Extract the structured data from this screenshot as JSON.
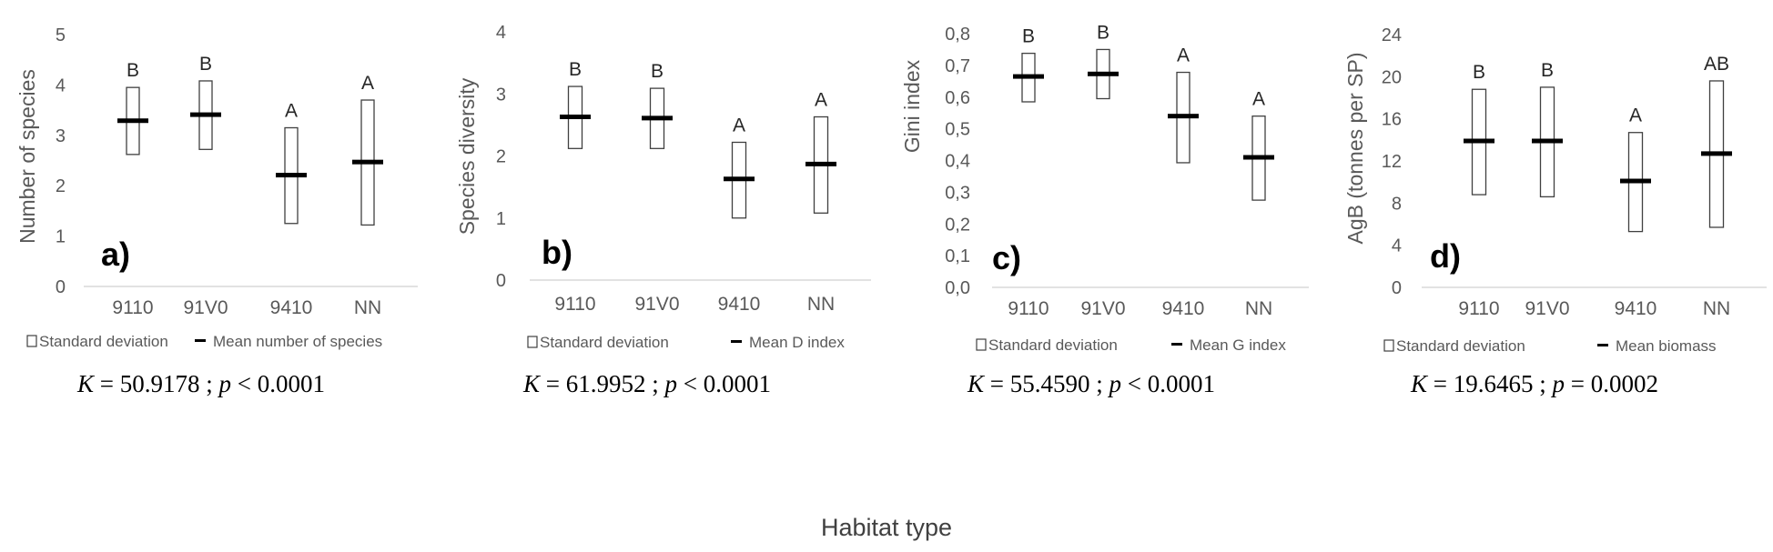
{
  "colors": {
    "axis_text": "#595959",
    "box_stroke": "#404040",
    "mean_bar": "#000000",
    "axis_line": "#d9d9d9",
    "letter": "#262626"
  },
  "x_axis_title": "Habitat type",
  "chart_data": [
    {
      "type": "box",
      "panel_label": "a)",
      "categories": [
        "9110",
        "91V0",
        "9410",
        "NN"
      ],
      "ylabel": "Number of species",
      "ylim": [
        0,
        5
      ],
      "yticks": [
        0,
        1,
        2,
        3,
        4,
        5
      ],
      "ytick_labels": [
        "0",
        "1",
        "2",
        "3",
        "4",
        "5"
      ],
      "series": [
        {
          "name": "Standard deviation",
          "lower": [
            2.62,
            2.72,
            1.25,
            1.22
          ],
          "upper": [
            3.95,
            4.08,
            3.15,
            3.7
          ]
        },
        {
          "name": "Mean number of species",
          "values": [
            3.29,
            3.41,
            2.21,
            2.47
          ]
        }
      ],
      "group_letters": [
        "B",
        "B",
        "A",
        "A"
      ],
      "legend": [
        "Standard deviation",
        "Mean number of species"
      ],
      "stats": {
        "k_label": "K",
        "k_value": "= 50.9178 ;",
        "p_label": "p",
        "p_value": "< 0.0001"
      }
    },
    {
      "type": "box",
      "panel_label": "b)",
      "categories": [
        "9110",
        "91V0",
        "9410",
        "NN"
      ],
      "ylabel": "Species diversity",
      "ylim": [
        0,
        4
      ],
      "yticks": [
        0,
        1,
        2,
        3,
        4
      ],
      "ytick_labels": [
        "0",
        "1",
        "2",
        "3",
        "4"
      ],
      "series": [
        {
          "name": "Standard deviation",
          "lower": [
            2.12,
            2.12,
            1.0,
            1.08
          ],
          "upper": [
            3.12,
            3.09,
            2.22,
            2.63
          ]
        },
        {
          "name": "Mean D index",
          "values": [
            2.63,
            2.61,
            1.63,
            1.87
          ]
        }
      ],
      "group_letters": [
        "B",
        "B",
        "A",
        "A"
      ],
      "legend": [
        "Standard deviation",
        "Mean D index"
      ],
      "stats": {
        "k_label": "K",
        "k_value": "= 61.9952 ;",
        "p_label": "p",
        "p_value": "< 0.0001"
      }
    },
    {
      "type": "box",
      "panel_label": "c)",
      "categories": [
        "9110",
        "91V0",
        "9410",
        "NN"
      ],
      "ylabel": "Gini index",
      "ylim": [
        0,
        0.8
      ],
      "yticks": [
        0,
        0.1,
        0.2,
        0.3,
        0.4,
        0.5,
        0.6,
        0.7,
        0.8
      ],
      "ytick_labels": [
        "0,0",
        "0,1",
        "0,2",
        "0,3",
        "0,4",
        "0,5",
        "0,6",
        "0,7",
        "0,8"
      ],
      "series": [
        {
          "name": "Standard deviation",
          "lower": [
            0.585,
            0.595,
            0.393,
            0.275
          ],
          "upper": [
            0.738,
            0.75,
            0.678,
            0.54
          ]
        },
        {
          "name": "Mean G index",
          "values": [
            0.665,
            0.673,
            0.54,
            0.41
          ]
        }
      ],
      "group_letters": [
        "B",
        "B",
        "A",
        "A"
      ],
      "legend": [
        "Standard deviation",
        "Mean G index"
      ],
      "stats": {
        "k_label": "K",
        "k_value": "= 55.4590 ;",
        "p_label": "p",
        "p_value": "< 0.0001"
      }
    },
    {
      "type": "box",
      "panel_label": "d)",
      "categories": [
        "9110",
        "91V0",
        "9410",
        "NN"
      ],
      "ylabel": "AgB (tonnes per SP)",
      "ylim": [
        0,
        24
      ],
      "yticks": [
        0,
        4,
        8,
        12,
        16,
        20,
        24
      ],
      "ytick_labels": [
        "0",
        "4",
        "8",
        "12",
        "16",
        "20",
        "24"
      ],
      "series": [
        {
          "name": "Standard deviation",
          "lower": [
            8.8,
            8.6,
            5.3,
            5.7
          ],
          "upper": [
            18.8,
            19.0,
            14.7,
            19.6
          ]
        },
        {
          "name": "Mean biomass",
          "values": [
            13.9,
            13.9,
            10.1,
            12.7
          ]
        }
      ],
      "group_letters": [
        "B",
        "B",
        "A",
        "AB"
      ],
      "legend": [
        "Standard deviation",
        "Mean biomass"
      ],
      "stats": {
        "k_label": "K",
        "k_value": "= 19.6465 ;",
        "p_label": "p",
        "p_value": "= 0.0002"
      }
    }
  ]
}
